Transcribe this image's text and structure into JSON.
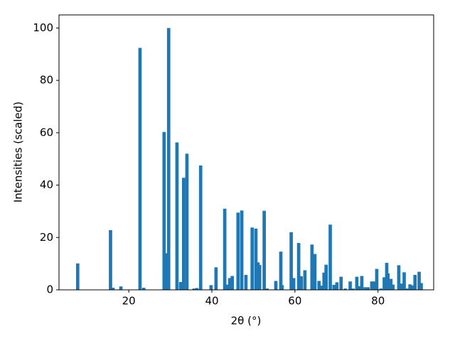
{
  "chart_data": {
    "type": "bar",
    "x_label": "2θ (°)",
    "y_label": "Intensities (scaled)",
    "color": "#1f77b4",
    "grid": false,
    "xlim": [
      3.2,
      93.4
    ],
    "xticks": [
      20,
      40,
      60,
      80
    ],
    "ylim": [
      0,
      105
    ],
    "yticks": [
      0,
      20,
      40,
      60,
      80,
      100
    ],
    "x": [
      7.7,
      15.6,
      16.2,
      18.1,
      22.7,
      23.6,
      28.5,
      29.0,
      29.6,
      31.6,
      32.5,
      33.2,
      34.0,
      35.7,
      36.4,
      37.3,
      39.8,
      41.0,
      43.1,
      43.6,
      44.3,
      44.9,
      46.3,
      47.2,
      48.2,
      49.7,
      50.6,
      51.1,
      51.5,
      52.6,
      53.3,
      55.4,
      56.6,
      56.9,
      59.1,
      59.7,
      60.9,
      61.5,
      62.4,
      64.1,
      64.8,
      65.8,
      66.3,
      67.0,
      67.5,
      68.5,
      69.4,
      70.1,
      71.1,
      72.1,
      73.3,
      74.0,
      74.9,
      75.6,
      76.1,
      76.9,
      77.6,
      78.5,
      79.0,
      79.7,
      80.7,
      81.5,
      82.1,
      82.4,
      83.1,
      83.6,
      85.0,
      85.6,
      86.3,
      87.0,
      87.7,
      88.2,
      88.9,
      89.9,
      90.4
    ],
    "values": [
      10.1,
      22.8,
      0.8,
      1.3,
      92.4,
      0.8,
      60.3,
      14,
      100,
      56.3,
      3,
      42.8,
      52,
      0.5,
      0.7,
      47.5,
      1.8,
      8.6,
      31,
      2,
      4.5,
      5.3,
      29.5,
      30.3,
      5.7,
      23.8,
      23.4,
      10.5,
      9.5,
      30.2,
      0.5,
      3.4,
      14.6,
      1.8,
      22,
      4.5,
      17.9,
      5.2,
      7.5,
      17.3,
      13.7,
      3.4,
      1.6,
      6.6,
      9.6,
      24.9,
      1.9,
      2.9,
      5,
      0.5,
      3.2,
      0.5,
      5,
      1.4,
      5.3,
      1,
      1,
      3.2,
      3.2,
      8,
      0.5,
      4.8,
      10.3,
      6.3,
      4.2,
      2,
      9.4,
      2.4,
      6.7,
      0.5,
      2.1,
      1.7,
      5.7,
      6.9,
      2.6
    ]
  }
}
